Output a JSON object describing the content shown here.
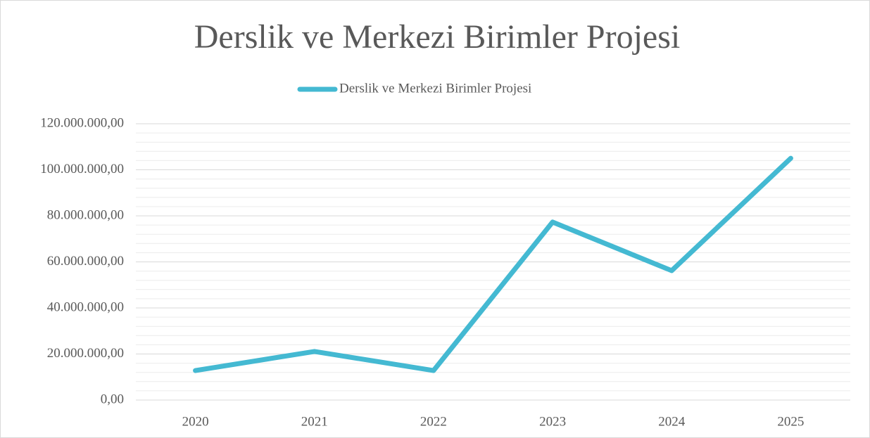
{
  "chart_data": {
    "type": "line",
    "title": "Derslik ve Merkezi Birimler Projesi",
    "categories": [
      "2020",
      "2021",
      "2022",
      "2023",
      "2024",
      "2025"
    ],
    "series": [
      {
        "name": "Derslik ve Merkezi Birimler Projesi",
        "color": "#44b9d2",
        "values": [
          12800000,
          21100000,
          12800000,
          77300000,
          56200000,
          105000000
        ]
      }
    ],
    "ylim": [
      0,
      120000000
    ],
    "yticks": [
      {
        "value": 0,
        "label": "0,00"
      },
      {
        "value": 20000000,
        "label": "20.000.000,00"
      },
      {
        "value": 40000000,
        "label": "40.000.000,00"
      },
      {
        "value": 60000000,
        "label": "60.000.000,00"
      },
      {
        "value": 80000000,
        "label": "80.000.000,00"
      },
      {
        "value": 100000000,
        "label": "100.000.000,00"
      },
      {
        "value": 120000000,
        "label": "120.000.000,00"
      }
    ],
    "grid": true,
    "minor_grid": true,
    "legend": "top"
  }
}
